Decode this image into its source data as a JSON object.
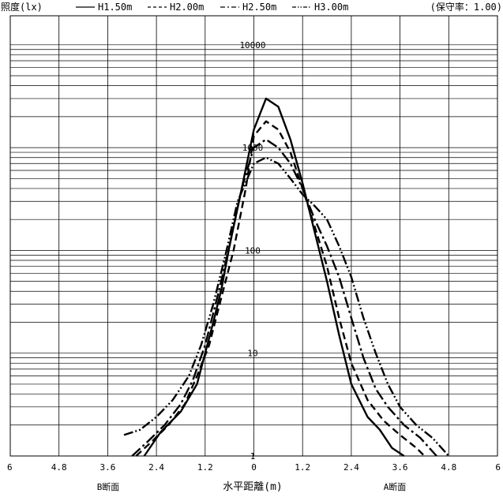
{
  "header": {
    "ylabel": "照度(lx)",
    "maintenance_factor": "(保守率：1.00)"
  },
  "chart_data": {
    "type": "line",
    "xlabel": "水平距離(m)",
    "x_range": [
      -6,
      6
    ],
    "x_tick_labels": [
      "6",
      "4.8",
      "3.6",
      "2.4",
      "1.2",
      "0",
      "1.2",
      "2.4",
      "3.6",
      "4.8",
      "6"
    ],
    "ylabel": "照度(lx)",
    "y_scale": "log",
    "y_range": [
      1,
      22000
    ],
    "y_tick_labels": [
      "1",
      "10",
      "100",
      "1000",
      "10000"
    ],
    "side_labels": {
      "left": "B断面",
      "right": "A断面"
    },
    "grid": true,
    "legend_position": "top",
    "series": [
      {
        "name": "H1.50m",
        "dash": "solid",
        "x": [
          -2.7,
          -2.3,
          -1.8,
          -1.4,
          -1.2,
          -1.0,
          -0.8,
          -0.6,
          -0.3,
          0.0,
          0.3,
          0.6,
          0.9,
          1.2,
          1.5,
          1.8,
          2.1,
          2.4,
          2.8,
          3.1,
          3.4,
          3.7
        ],
        "y": [
          1,
          1.7,
          2.7,
          5,
          10,
          20,
          42,
          110,
          400,
          1500,
          3000,
          2500,
          1200,
          450,
          150,
          50,
          15,
          5,
          2.4,
          1.8,
          1.2,
          1
        ]
      },
      {
        "name": "H2.00m",
        "dash": "dashed",
        "x": [
          -2.9,
          -2.5,
          -2.1,
          -1.7,
          -1.4,
          -1.1,
          -0.8,
          -0.5,
          -0.2,
          0.0,
          0.3,
          0.6,
          0.9,
          1.2,
          1.5,
          1.8,
          2.1,
          2.4,
          2.8,
          3.2,
          3.6,
          4.0,
          4.2
        ],
        "y": [
          1,
          1.4,
          2,
          3.2,
          6,
          12,
          35,
          100,
          400,
          1300,
          1800,
          1500,
          900,
          400,
          170,
          70,
          22,
          8,
          3.5,
          2.2,
          1.6,
          1.2,
          1
        ]
      },
      {
        "name": "H2.50m",
        "dash": "dash-dot",
        "x": [
          -3.0,
          -2.6,
          -2.2,
          -1.8,
          -1.5,
          -1.2,
          -0.9,
          -0.6,
          -0.3,
          0.0,
          0.3,
          0.6,
          0.9,
          1.2,
          1.5,
          1.8,
          2.1,
          2.4,
          2.7,
          3.0,
          3.3,
          3.7,
          4.1,
          4.5
        ],
        "y": [
          1,
          1.4,
          2,
          3.2,
          5.5,
          12,
          35,
          110,
          400,
          1000,
          1200,
          1000,
          700,
          400,
          200,
          110,
          55,
          22,
          9,
          4.5,
          3,
          2,
          1.5,
          1
        ]
      },
      {
        "name": "H3.00m",
        "dash": "dash-dot-dot",
        "x": [
          -3.2,
          -2.8,
          -2.4,
          -2.0,
          -1.6,
          -1.3,
          -1.0,
          -0.7,
          -0.4,
          0.0,
          0.3,
          0.6,
          0.9,
          1.2,
          1.5,
          1.8,
          2.1,
          2.4,
          2.7,
          3.0,
          3.3,
          3.6,
          4.0,
          4.4,
          4.8
        ],
        "y": [
          1.6,
          1.8,
          2.4,
          3.5,
          6,
          12,
          30,
          90,
          300,
          700,
          800,
          700,
          500,
          350,
          270,
          200,
          110,
          55,
          22,
          10,
          5,
          3,
          2,
          1.5,
          1
        ]
      }
    ]
  }
}
